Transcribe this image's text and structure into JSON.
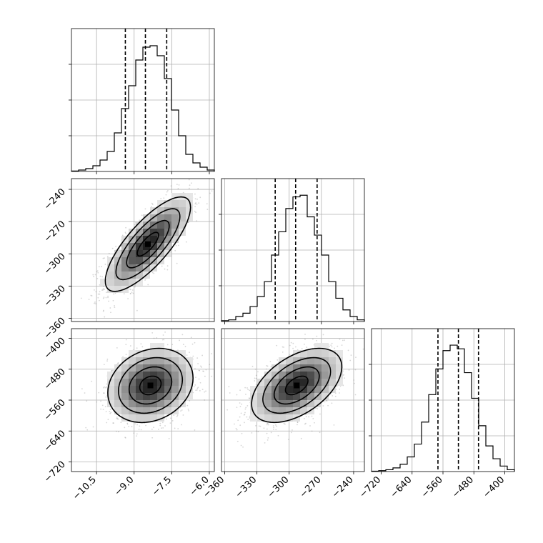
{
  "chart_data": {
    "type": "corner",
    "grid": true,
    "parameters": [
      {
        "index": 0,
        "range": [
          -11.5,
          -5.8
        ],
        "quantiles": [
          -9.35,
          -8.55,
          -7.7
        ],
        "ticks": [
          {
            "v": -10.5,
            "label": "−10.5"
          },
          {
            "v": -9.0,
            "label": "−9.0"
          },
          {
            "v": -7.5,
            "label": "−7.5"
          },
          {
            "v": -6.0,
            "label": "−6.0"
          }
        ]
      },
      {
        "index": 1,
        "range": [
          -363,
          -230
        ],
        "quantiles": [
          -313,
          -294,
          -274
        ],
        "ticks": [
          {
            "v": -360,
            "label": "−360"
          },
          {
            "v": -330,
            "label": "−330"
          },
          {
            "v": -300,
            "label": "−300"
          },
          {
            "v": -270,
            "label": "−270"
          },
          {
            "v": -240,
            "label": "−240"
          }
        ]
      },
      {
        "index": 2,
        "range": [
          -745,
          -375
        ],
        "quantiles": [
          -573,
          -520,
          -468
        ],
        "ticks": [
          {
            "v": -720,
            "label": "−720"
          },
          {
            "v": -640,
            "label": "−640"
          },
          {
            "v": -560,
            "label": "−560"
          },
          {
            "v": -480,
            "label": "−480"
          },
          {
            "v": -400,
            "label": "−400"
          }
        ]
      }
    ],
    "histograms": [
      {
        "param": 0,
        "counts": [
          0.3,
          1,
          2,
          4,
          8,
          14,
          27,
          44,
          60,
          78,
          87,
          88,
          81,
          65,
          43,
          25,
          12,
          6,
          3,
          1
        ],
        "ymax": 100
      },
      {
        "param": 1,
        "counts": [
          0.5,
          1,
          3,
          5,
          9,
          15,
          24,
          40,
          54,
          68,
          75,
          76,
          63,
          52,
          40,
          24,
          14,
          7,
          3,
          1
        ],
        "ymax": 86
      },
      {
        "param": 2,
        "counts": [
          0.2,
          0.5,
          1,
          2,
          4,
          8,
          15,
          27,
          42,
          56,
          66,
          69,
          67,
          54,
          40,
          25,
          14,
          7,
          3,
          1
        ],
        "ymax": 78
      }
    ],
    "pairs": [
      {
        "x": 1,
        "y": 0,
        "mean_x": -8.45,
        "mean_y": -291,
        "sd_x": 0.85,
        "sd_y": 22,
        "rho": 0.78
      },
      {
        "x": 2,
        "y": 0,
        "mean_x": -8.35,
        "mean_y": -522,
        "sd_x": 0.85,
        "sd_y": 48,
        "rho": 0.2
      },
      {
        "x": 2,
        "y": 1,
        "mean_x": -293,
        "mean_y": -522,
        "sd_x": 21,
        "sd_y": 48,
        "rho": 0.5
      }
    ],
    "contour_levels_sigma": [
      0.5,
      1.0,
      1.5,
      2.0
    ]
  }
}
